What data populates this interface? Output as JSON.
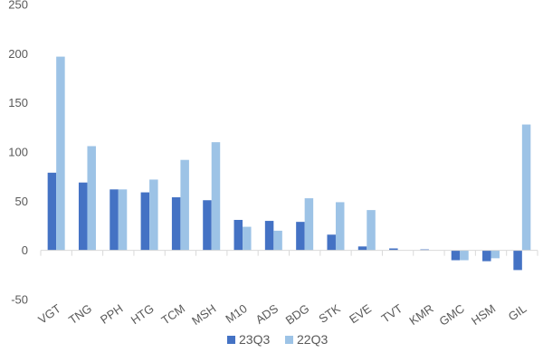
{
  "chart_data": {
    "type": "bar",
    "categories": [
      "VGT",
      "TNG",
      "PPH",
      "HTG",
      "TCM",
      "MSH",
      "M10",
      "ADS",
      "BDG",
      "STK",
      "EVE",
      "TVT",
      "KMR",
      "GMC",
      "HSM",
      "GIL"
    ],
    "series": [
      {
        "name": "23Q3",
        "color": "#4472C4",
        "values": [
          79,
          69,
          62,
          59,
          54,
          51,
          31,
          30,
          29,
          16,
          4,
          2,
          1,
          -10,
          -11,
          -20
        ]
      },
      {
        "name": "22Q3",
        "color": "#9DC3E6",
        "values": [
          197,
          106,
          62,
          72,
          92,
          110,
          24,
          20,
          53,
          49,
          41,
          0,
          0,
          -10,
          -8,
          128
        ]
      }
    ],
    "ylim": [
      -50,
      250
    ],
    "yticks": [
      -50,
      0,
      50,
      100,
      150,
      200,
      250
    ],
    "grid": false,
    "legend": "bottom",
    "xlabel": "",
    "ylabel": ""
  }
}
